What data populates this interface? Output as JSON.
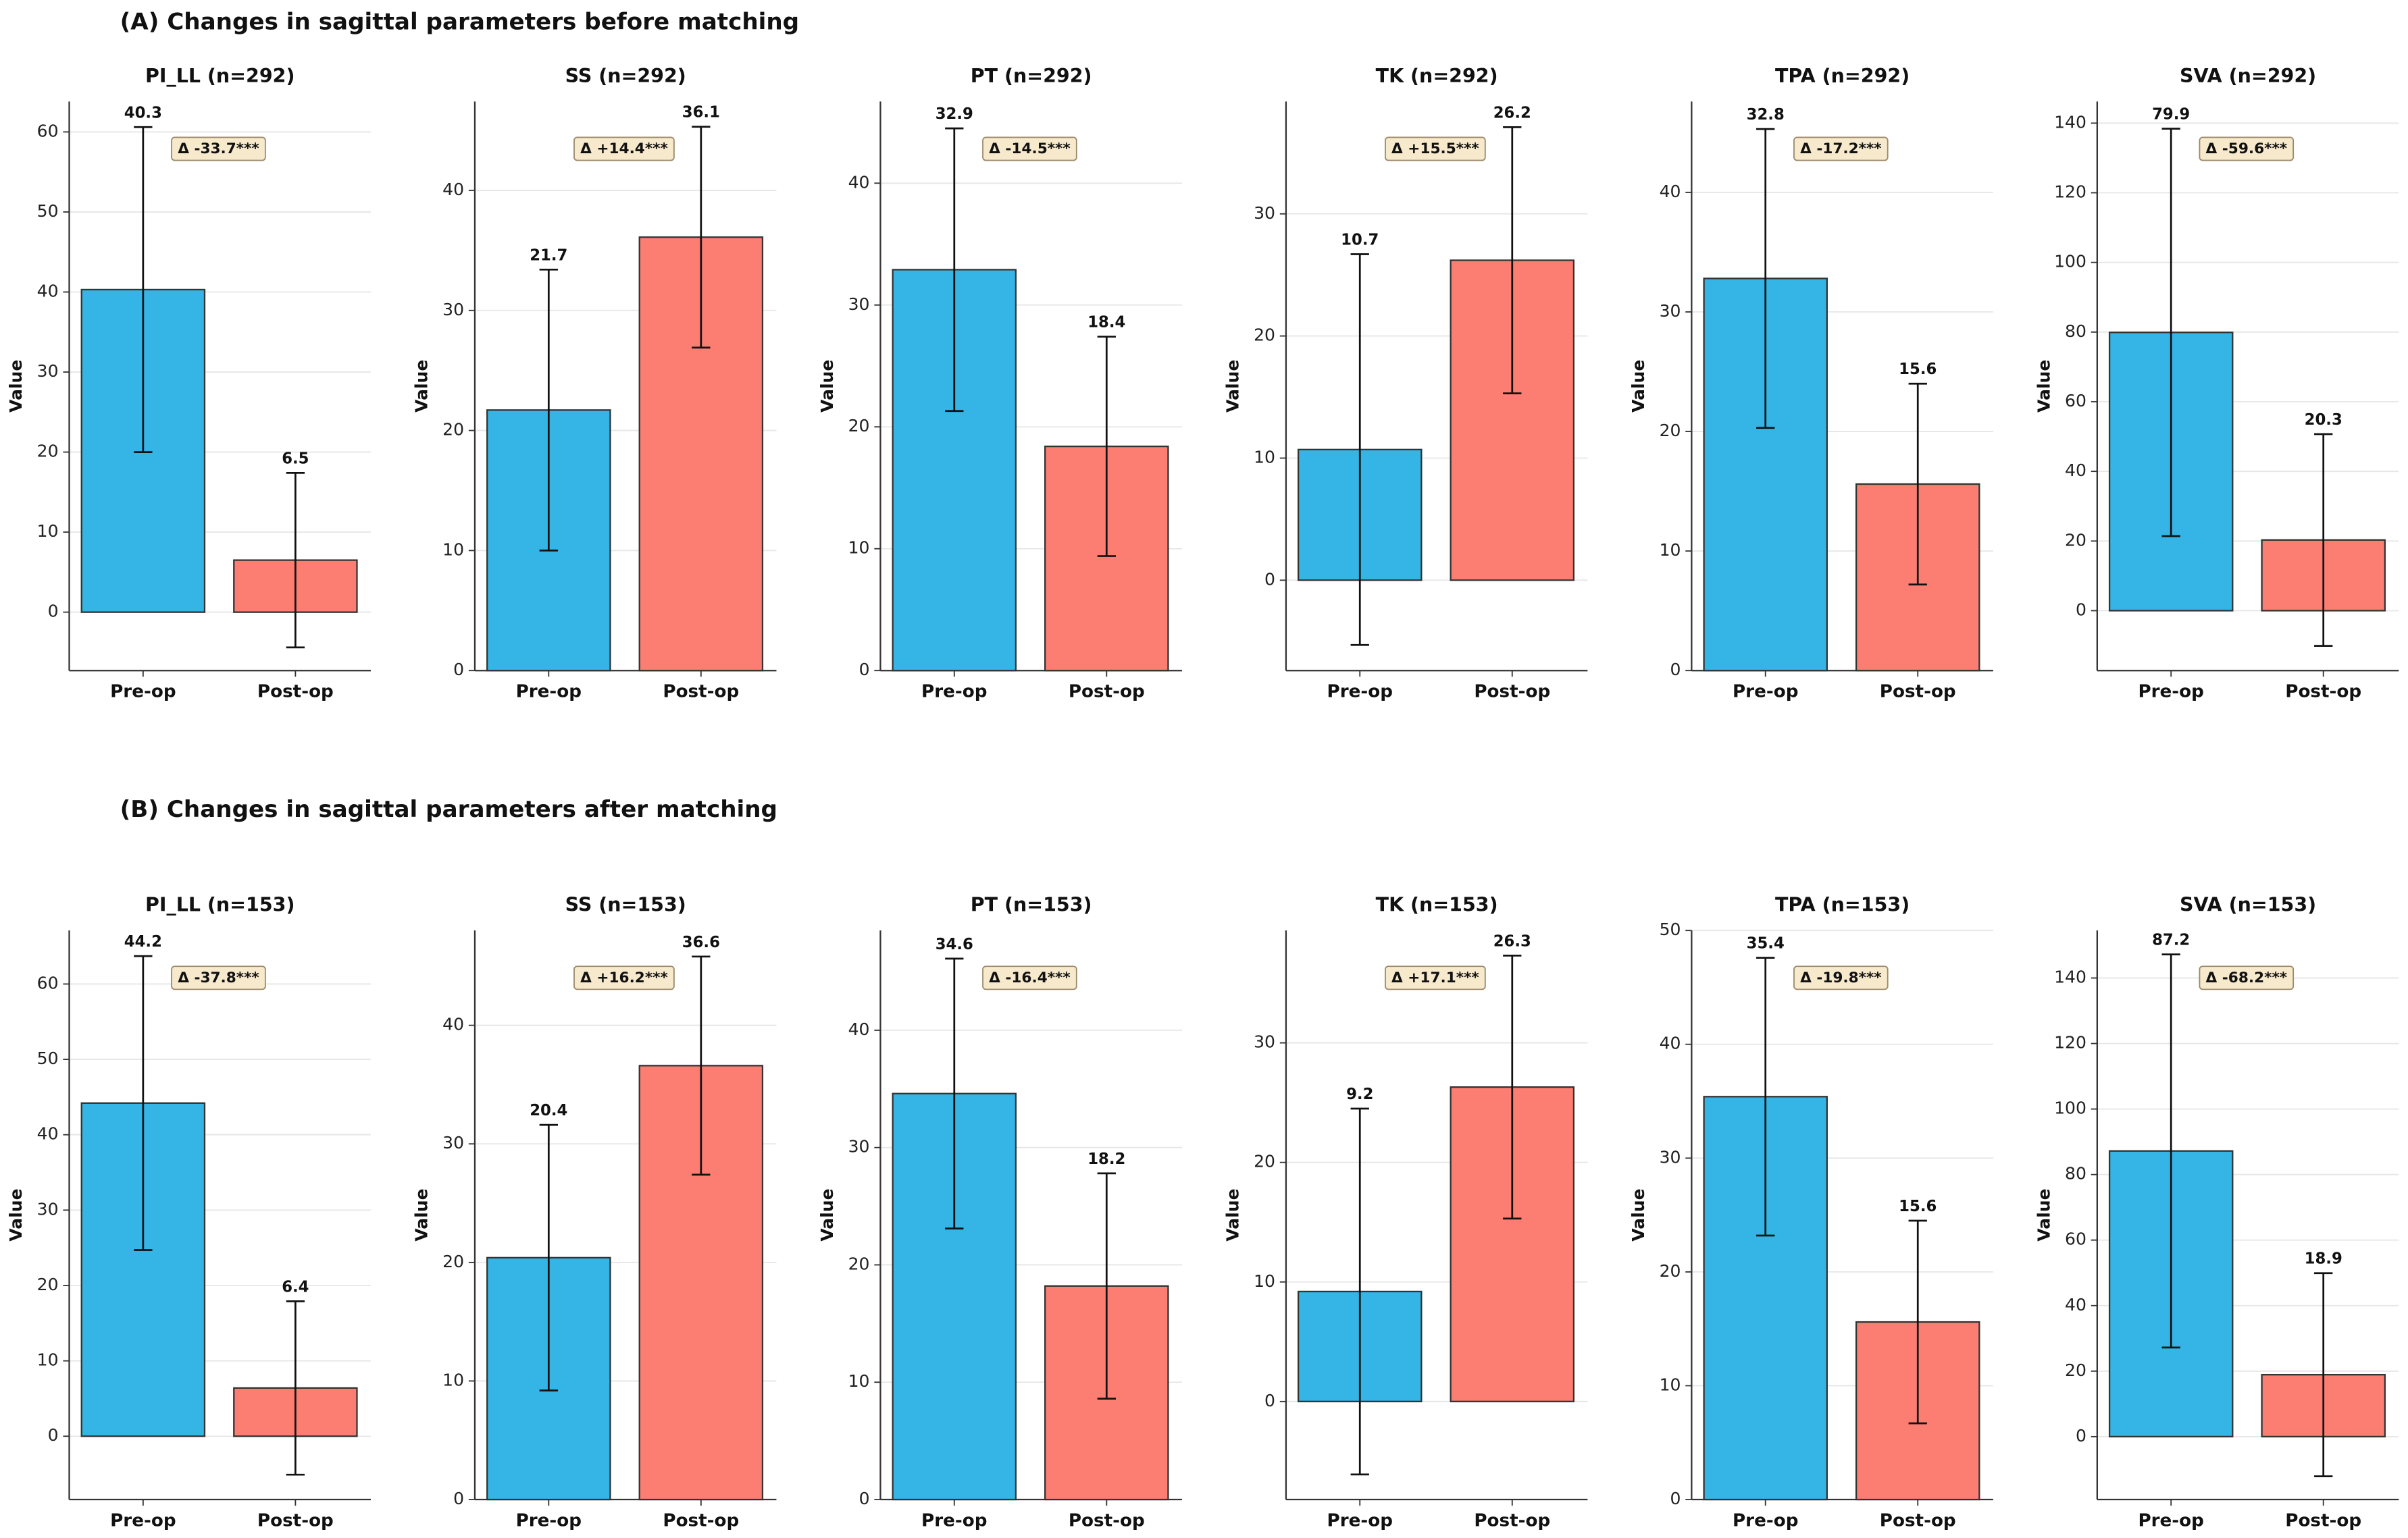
{
  "figure_titles": [
    "(A) Changes in sagittal parameters before matching",
    "(B) Changes in sagittal parameters after matching"
  ],
  "chart_data": [
    {
      "type": "bar",
      "title": "PI_LL (n=292)",
      "ylabel": "Value",
      "categories": [
        "Pre-op",
        "Post-op"
      ],
      "values": [
        40.3,
        6.5
      ],
      "errors": [
        20.3,
        10.9
      ],
      "colors": [
        "#35b5e5",
        "#fc7e72"
      ],
      "ylim": [
        -7.3,
        63.8
      ],
      "yticks": [
        0,
        10,
        20,
        30,
        40,
        50,
        60
      ],
      "grid": true,
      "annotation": "Δ -33.7***"
    },
    {
      "type": "bar",
      "title": "SS (n=292)",
      "ylabel": "Value",
      "categories": [
        "Pre-op",
        "Post-op"
      ],
      "values": [
        21.7,
        36.1
      ],
      "errors": [
        11.7,
        9.2
      ],
      "colors": [
        "#35b5e5",
        "#fc7e72"
      ],
      "ylim": [
        0,
        47.4
      ],
      "yticks": [
        0,
        10,
        20,
        30,
        40
      ],
      "grid": true,
      "annotation": "Δ +14.4***"
    },
    {
      "type": "bar",
      "title": "PT (n=292)",
      "ylabel": "Value",
      "categories": [
        "Pre-op",
        "Post-op"
      ],
      "values": [
        32.9,
        18.4
      ],
      "errors": [
        11.6,
        9
      ],
      "colors": [
        "#35b5e5",
        "#fc7e72"
      ],
      "ylim": [
        0,
        46.7
      ],
      "yticks": [
        0,
        10,
        20,
        30,
        40
      ],
      "grid": true,
      "annotation": "Δ -14.5***"
    },
    {
      "type": "bar",
      "title": "TK (n=292)",
      "ylabel": "Value",
      "categories": [
        "Pre-op",
        "Post-op"
      ],
      "values": [
        10.7,
        26.2
      ],
      "errors": [
        16,
        10.9
      ],
      "colors": [
        "#35b5e5",
        "#fc7e72"
      ],
      "ylim": [
        -7.4,
        39.2
      ],
      "yticks": [
        0,
        10,
        20,
        30
      ],
      "grid": true,
      "annotation": "Δ +15.5***"
    },
    {
      "type": "bar",
      "title": "TPA (n=292)",
      "ylabel": "Value",
      "categories": [
        "Pre-op",
        "Post-op"
      ],
      "values": [
        32.8,
        15.6
      ],
      "errors": [
        12.5,
        8.4
      ],
      "colors": [
        "#35b5e5",
        "#fc7e72"
      ],
      "ylim": [
        0,
        47.6
      ],
      "yticks": [
        0,
        10,
        20,
        30,
        40
      ],
      "grid": true,
      "annotation": "Δ -17.2***"
    },
    {
      "type": "bar",
      "title": "SVA (n=292)",
      "ylabel": "Value",
      "categories": [
        "Pre-op",
        "Post-op"
      ],
      "values": [
        79.9,
        20.3
      ],
      "errors": [
        58.5,
        30.4
      ],
      "colors": [
        "#35b5e5",
        "#fc7e72"
      ],
      "ylim": [
        -17.2,
        146.2
      ],
      "yticks": [
        0,
        20,
        40,
        60,
        80,
        100,
        120,
        140
      ],
      "grid": true,
      "annotation": "Δ -59.6***"
    },
    {
      "type": "bar",
      "title": "PI_LL (n=153)",
      "ylabel": "Value",
      "categories": [
        "Pre-op",
        "Post-op"
      ],
      "values": [
        44.2,
        6.4
      ],
      "errors": [
        19.5,
        11.5
      ],
      "colors": [
        "#35b5e5",
        "#fc7e72"
      ],
      "ylim": [
        -8.4,
        67.1
      ],
      "yticks": [
        0,
        10,
        20,
        30,
        40,
        50,
        60
      ],
      "grid": true,
      "annotation": "Δ -37.8***"
    },
    {
      "type": "bar",
      "title": "SS (n=153)",
      "ylabel": "Value",
      "categories": [
        "Pre-op",
        "Post-op"
      ],
      "values": [
        20.4,
        36.6
      ],
      "errors": [
        11.2,
        9.2
      ],
      "colors": [
        "#35b5e5",
        "#fc7e72"
      ],
      "ylim": [
        0,
        48
      ],
      "yticks": [
        0,
        10,
        20,
        30,
        40
      ],
      "grid": true,
      "annotation": "Δ +16.2***"
    },
    {
      "type": "bar",
      "title": "PT (n=153)",
      "ylabel": "Value",
      "categories": [
        "Pre-op",
        "Post-op"
      ],
      "values": [
        34.6,
        18.2
      ],
      "errors": [
        11.5,
        9.6
      ],
      "colors": [
        "#35b5e5",
        "#fc7e72"
      ],
      "ylim": [
        0,
        48.5
      ],
      "yticks": [
        0,
        10,
        20,
        30,
        40
      ],
      "grid": true,
      "annotation": "Δ -16.4***"
    },
    {
      "type": "bar",
      "title": "TK (n=153)",
      "ylabel": "Value",
      "categories": [
        "Pre-op",
        "Post-op"
      ],
      "values": [
        9.2,
        26.3
      ],
      "errors": [
        15.3,
        11
      ],
      "colors": [
        "#35b5e5",
        "#fc7e72"
      ],
      "ylim": [
        -8.2,
        39.4
      ],
      "yticks": [
        0,
        10,
        20,
        30
      ],
      "grid": true,
      "annotation": "Δ +17.1***"
    },
    {
      "type": "bar",
      "title": "TPA (n=153)",
      "ylabel": "Value",
      "categories": [
        "Pre-op",
        "Post-op"
      ],
      "values": [
        35.4,
        15.6
      ],
      "errors": [
        12.2,
        8.9
      ],
      "colors": [
        "#35b5e5",
        "#fc7e72"
      ],
      "ylim": [
        0,
        50
      ],
      "yticks": [
        0,
        10,
        20,
        30,
        40,
        50
      ],
      "grid": true,
      "annotation": "Δ -19.8***"
    },
    {
      "type": "bar",
      "title": "SVA (n=153)",
      "ylabel": "Value",
      "categories": [
        "Pre-op",
        "Post-op"
      ],
      "values": [
        87.2,
        18.9
      ],
      "errors": [
        60,
        31
      ],
      "colors": [
        "#35b5e5",
        "#fc7e72"
      ],
      "ylim": [
        -19.2,
        154.5
      ],
      "yticks": [
        0,
        20,
        40,
        60,
        80,
        100,
        120,
        140
      ],
      "grid": true,
      "annotation": "Δ -68.2***"
    }
  ]
}
